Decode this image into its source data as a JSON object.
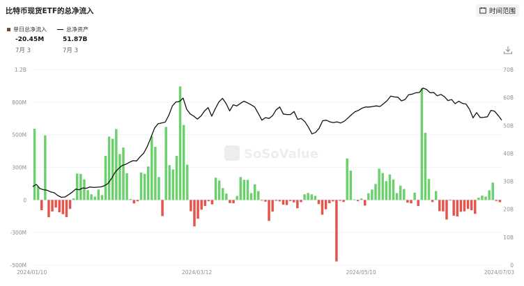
{
  "header": {
    "title": "比特币现货ETF的总净流入",
    "range_button": "时间范围"
  },
  "legend": {
    "flow": {
      "label": "单日总净流入",
      "value": "-20.45M",
      "date": "7月 3"
    },
    "assets": {
      "label": "总净资产",
      "value": "51.87B",
      "date": "7月 3"
    }
  },
  "watermark": {
    "brand": "SoSoValue"
  },
  "colors": {
    "inflow": "#6cd06c",
    "outflow": "#e5534b",
    "line": "#111111",
    "legend_flow": "#6b4a2f"
  },
  "icons": {
    "range": "calendar-icon",
    "download": "download-icon"
  },
  "chart_data": {
    "type": "bar",
    "y_left": {
      "ticks": [
        "1.2B",
        "800M",
        "500M",
        "300M",
        "0",
        "-300M",
        "-500M"
      ],
      "ylim": [
        -600,
        1200
      ]
    },
    "y_right": {
      "ticks": [
        "70B",
        "60B",
        "50B",
        "40B",
        "30B",
        "20B",
        "10B",
        "0"
      ],
      "ylim": [
        0,
        70
      ]
    },
    "x_ticks": [
      "2024/01/10",
      "2024/03/12",
      "2024/05/10",
      "2024/07/03"
    ],
    "series": [
      {
        "chart_type": "bar",
        "values": [
          655,
          125,
          -94,
          594,
          -159,
          -106,
          -70,
          -113,
          -131,
          -158,
          -83,
          15,
          243,
          240,
          189,
          90,
          52,
          31,
          96,
          45,
          406,
          583,
          563,
          652,
          423,
          483,
          246,
          9,
          -32,
          -12,
          253,
          240,
          308,
          587,
          489,
          211,
          -149,
          672,
          320,
          281,
          405,
          1045,
          690,
          325,
          -104,
          -243,
          -173,
          -89,
          -55,
          -12,
          -41,
          205,
          179,
          109,
          59,
          -29,
          -31,
          37,
          211,
          186,
          185,
          63,
          144,
          82,
          -6,
          -16,
          -193,
          -108,
          -8,
          -13,
          -43,
          -47,
          -10,
          -22,
          -76,
          -20,
          52,
          64,
          52,
          37,
          -38,
          -136,
          -86,
          -30,
          -13,
          -566,
          -8,
          -18,
          382,
          271,
          6,
          -11,
          14,
          -52,
          61,
          96,
          147,
          288,
          248,
          173,
          234,
          188,
          63,
          132,
          101,
          -25,
          -31,
          67,
          -55,
          1030,
          618,
          193,
          -19,
          82,
          -103,
          -105,
          -180,
          -5,
          -145,
          -152,
          -109,
          -105,
          -83,
          -95,
          -128,
          21,
          40,
          31,
          88,
          160,
          -9,
          -20
        ],
        "estimated": true
      },
      {
        "chart_type": "line",
        "name": "总净资产",
        "values": [
          28.1,
          28.9,
          27.4,
          27.0,
          26.8,
          26.2,
          25.9,
          24.9,
          24.3,
          24.4,
          25.2,
          26.1,
          27.2,
          27.0,
          27.6,
          27.5,
          28.0,
          27.8,
          27.9,
          28.0,
          28.4,
          29.2,
          31.0,
          33.2,
          34.6,
          35.7,
          36.1,
          36.8,
          37.4,
          37.3,
          38.8,
          40.1,
          42.5,
          45.6,
          49.0,
          50.6,
          50.9,
          51.2,
          53.6,
          57.0,
          58.4,
          58.6,
          59.8,
          55.8,
          54.1,
          53.3,
          52.3,
          53.4,
          55.2,
          56.4,
          53.3,
          56.0,
          58.4,
          59.7,
          57.9,
          55.2,
          57.4,
          57.0,
          57.9,
          58.7,
          58.1,
          57.4,
          56.6,
          54.3,
          51.9,
          52.8,
          52.5,
          53.5,
          55.6,
          56.6,
          54.1,
          53.9,
          53.9,
          55.0,
          52.2,
          52.5,
          51.4,
          49.4,
          47.0,
          47.5,
          49.0,
          51.7,
          51.9,
          51.3,
          51.0,
          51.3,
          50.9,
          51.5,
          52.6,
          53.8,
          54.9,
          55.4,
          56.2,
          56.6,
          56.6,
          56.8,
          57.0,
          56.8,
          57.8,
          58.9,
          60.5,
          60.2,
          60.1,
          58.8,
          59.3,
          61.0,
          61.2,
          61.7,
          61.8,
          63.4,
          62.9,
          61.7,
          61.8,
          60.6,
          61.1,
          60.3,
          58.9,
          59.3,
          57.8,
          58.7,
          57.9,
          57.7,
          55.8,
          52.7,
          54.6,
          52.8,
          52.9,
          53.1,
          55.4,
          55.1,
          53.6,
          51.87
        ],
        "estimated": true
      }
    ]
  }
}
